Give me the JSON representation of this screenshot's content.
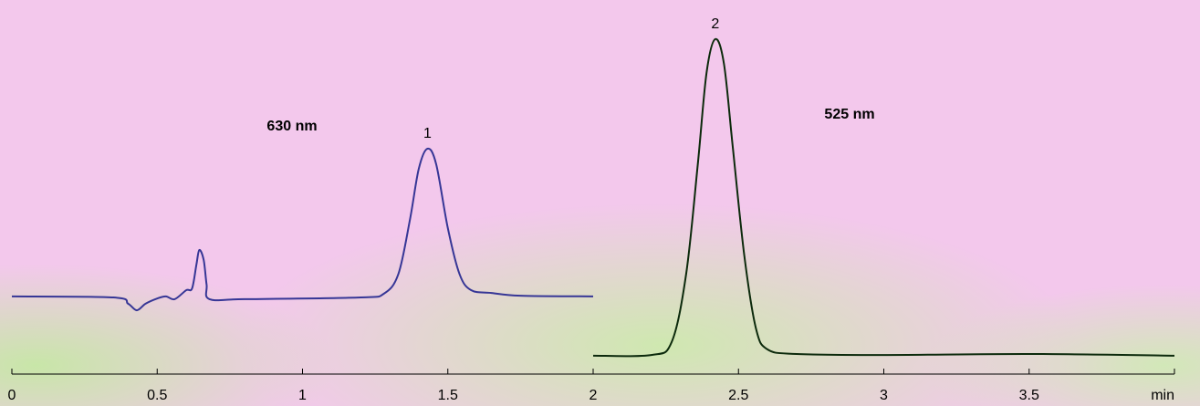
{
  "chart_data": {
    "type": "line",
    "xlim": [
      0,
      4
    ],
    "ylim": [
      0,
      100
    ],
    "xticks": [
      0,
      0.5,
      1,
      1.5,
      2,
      2.5,
      3,
      3.5,
      {
        "value": 4,
        "label": "min"
      }
    ],
    "series": [
      {
        "name": "630 nm",
        "color": "#363696",
        "x": [
          0,
          0.35,
          0.4,
          0.43,
          0.46,
          0.5,
          0.53,
          0.56,
          0.6,
          0.62,
          0.635,
          0.645,
          0.66,
          0.67,
          0.68,
          0.8,
          1.2,
          1.28,
          1.33,
          1.37,
          1.4,
          1.43,
          1.46,
          1.5,
          1.54,
          1.58,
          1.65,
          1.75,
          2.0
        ],
        "values": [
          22.4,
          22.1,
          20.3,
          18.4,
          20.3,
          21.8,
          22.4,
          21.6,
          24.2,
          24.7,
          31.6,
          35.8,
          32.9,
          25.8,
          21.6,
          21.6,
          22.1,
          23.2,
          28.9,
          44.7,
          59.2,
          65.0,
          60.5,
          42.1,
          28.9,
          24.2,
          23.4,
          22.6,
          22.4
        ]
      },
      {
        "name": "525 nm",
        "color": "#0c2a0c",
        "x": [
          2.0,
          2.2,
          2.27,
          2.32,
          2.36,
          2.39,
          2.42,
          2.45,
          2.48,
          2.52,
          2.56,
          2.6,
          2.7,
          3.0,
          3.5,
          4.0
        ],
        "values": [
          5.3,
          5.5,
          9.2,
          28.9,
          60.5,
          86.8,
          96.6,
          89.5,
          65.8,
          34.2,
          13.2,
          7.1,
          5.8,
          5.5,
          5.8,
          5.3
        ]
      }
    ],
    "annotations": [
      "1",
      "2"
    ]
  }
}
